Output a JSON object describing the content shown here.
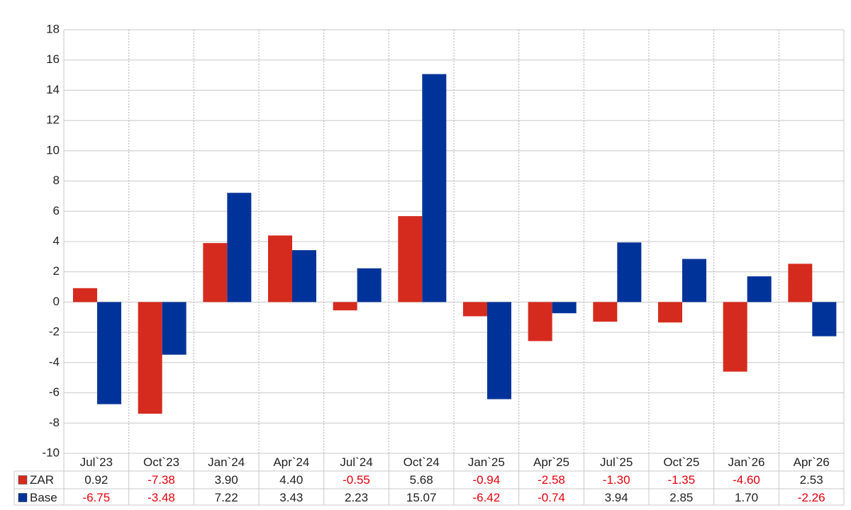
{
  "chart_data": {
    "type": "bar",
    "categories": [
      "Jul`23",
      "Oct`23",
      "Jan`24",
      "Apr`24",
      "Jul`24",
      "Oct`24",
      "Jan`25",
      "Apr`25",
      "Jul`25",
      "Oct`25",
      "Jan`26",
      "Apr`26"
    ],
    "series": [
      {
        "name": "ZAR",
        "color": "#d52b1e",
        "values": [
          0.92,
          -7.38,
          3.9,
          4.4,
          -0.55,
          5.68,
          -0.94,
          -2.58,
          -1.3,
          -1.35,
          -4.6,
          2.53
        ],
        "value_labels": [
          "0.92",
          "-7.38",
          "3.90",
          "4.40",
          "-0.55",
          "5.68",
          "-0.94",
          "-2.58",
          "-1.30",
          "-1.35",
          "-4.60",
          "2.53"
        ]
      },
      {
        "name": "Base",
        "color": "#003399",
        "values": [
          -6.75,
          -3.48,
          7.22,
          3.43,
          2.23,
          15.07,
          -6.42,
          -0.74,
          3.94,
          2.85,
          1.7,
          -2.26
        ],
        "value_labels": [
          "-6.75",
          "-3.48",
          "7.22",
          "3.43",
          "2.23",
          "15.07",
          "-6.42",
          "-0.74",
          "3.94",
          "2.85",
          "1.70",
          "-2.26"
        ]
      }
    ],
    "ylim": [
      -10,
      18
    ],
    "yticks": [
      -10,
      -8,
      -6,
      -4,
      -2,
      0,
      2,
      4,
      6,
      8,
      10,
      12,
      14,
      16,
      18
    ],
    "grid": true
  }
}
